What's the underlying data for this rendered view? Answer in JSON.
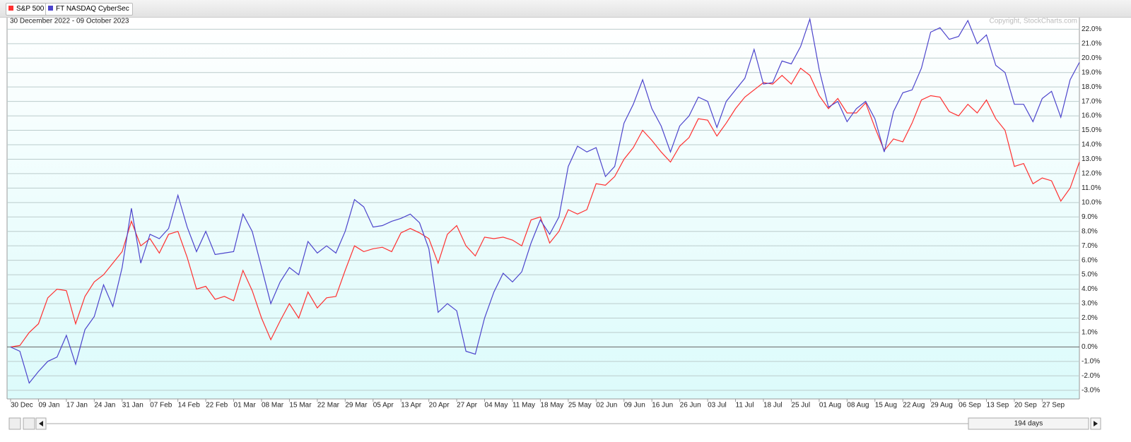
{
  "chart_data": {
    "type": "line",
    "subtitle": "30 December 2022 - 09 October 2023",
    "annotation": "Copyright, StockCharts.com",
    "categories": [
      "30 Dec",
      null,
      null,
      "09 Jan",
      null,
      null,
      "17 Jan",
      null,
      null,
      "24 Jan",
      null,
      null,
      "31 Jan",
      null,
      null,
      "07 Feb",
      null,
      null,
      "14 Feb",
      null,
      null,
      "22 Feb",
      null,
      null,
      "01 Mar",
      null,
      null,
      "08 Mar",
      null,
      null,
      "15 Mar",
      null,
      null,
      "22 Mar",
      null,
      null,
      "29 Mar",
      null,
      null,
      "05 Apr",
      null,
      null,
      "13 Apr",
      null,
      null,
      "20 Apr",
      null,
      null,
      "27 Apr",
      null,
      null,
      "04 May",
      null,
      null,
      "11 May",
      null,
      null,
      "18 May",
      null,
      null,
      "25 May",
      null,
      null,
      "02 Jun",
      null,
      null,
      "09 Jun",
      null,
      null,
      "16 Jun",
      null,
      null,
      "26 Jun",
      null,
      null,
      "03 Jul",
      null,
      null,
      "11 Jul",
      null,
      null,
      "18 Jul",
      null,
      null,
      "25 Jul",
      null,
      null,
      "01 Aug",
      null,
      null,
      "08 Aug",
      null,
      null,
      "15 Aug",
      null,
      null,
      "22 Aug",
      null,
      null,
      "29 Aug",
      null,
      null,
      "06 Sep",
      null,
      null,
      "13 Sep",
      null,
      null,
      "20 Sep",
      null,
      null,
      "27 Sep",
      null,
      null,
      null,
      null
    ],
    "series": [
      {
        "name": "S&P 500",
        "color": "#ff3030",
        "values": [
          0,
          0.1,
          1.0,
          1.6,
          3.4,
          4.0,
          3.9,
          1.6,
          3.5,
          4.5,
          5.0,
          5.8,
          6.6,
          8.7,
          7.0,
          7.5,
          6.5,
          7.8,
          8.0,
          6.2,
          4.0,
          4.2,
          3.3,
          3.5,
          3.2,
          5.3,
          3.9,
          2.0,
          0.5,
          1.8,
          3.0,
          2.0,
          3.8,
          2.7,
          3.4,
          3.5,
          5.3,
          7.0,
          6.6,
          6.8,
          6.9,
          6.6,
          7.9,
          8.2,
          7.9,
          7.5,
          5.8,
          7.8,
          8.4,
          7.0,
          6.3,
          7.6,
          7.5,
          7.6,
          7.4,
          7.0,
          8.8,
          9.0,
          7.2,
          8.0,
          9.5,
          9.2,
          9.5,
          11.3,
          11.2,
          11.8,
          13.0,
          13.8,
          15.0,
          14.3,
          13.5,
          12.8,
          13.9,
          14.5,
          15.8,
          15.7,
          14.6,
          15.5,
          16.5,
          17.3,
          17.8,
          18.3,
          18.2,
          18.8,
          18.2,
          19.3,
          18.8,
          17.4,
          16.5,
          17.2,
          16.2,
          16.2,
          16.9,
          15.2,
          13.6,
          14.4,
          14.2,
          15.5,
          17.1,
          17.4,
          17.3,
          16.3,
          16.0,
          16.8,
          16.2,
          17.1,
          15.8,
          15.0,
          12.5,
          12.7,
          11.3,
          11.7,
          11.5,
          10.1,
          11.0,
          12.8
        ]
      },
      {
        "name": "FT NASDAQ CyberSec",
        "color": "#4c44cc",
        "values": [
          0,
          -0.3,
          -2.5,
          -1.7,
          -1.0,
          -0.7,
          0.8,
          -1.2,
          1.2,
          2.1,
          4.3,
          2.8,
          5.5,
          9.6,
          5.8,
          7.8,
          7.5,
          8.2,
          10.5,
          8.3,
          6.6,
          8.0,
          6.4,
          6.5,
          6.6,
          9.2,
          8.0,
          5.5,
          3.0,
          4.5,
          5.5,
          5.0,
          7.3,
          6.5,
          7.0,
          6.5,
          8.0,
          10.2,
          9.7,
          8.3,
          8.4,
          8.7,
          8.9,
          9.2,
          8.6,
          6.8,
          2.4,
          3.0,
          2.5,
          -0.3,
          -0.5,
          2.0,
          3.8,
          5.1,
          4.5,
          5.2,
          7.2,
          8.8,
          7.8,
          9.0,
          12.5,
          13.9,
          13.5,
          13.8,
          11.8,
          12.5,
          15.5,
          16.8,
          18.5,
          16.5,
          15.3,
          13.5,
          15.3,
          16.0,
          17.3,
          17.0,
          15.2,
          17.0,
          17.8,
          18.6,
          20.6,
          18.2,
          18.3,
          19.8,
          19.6,
          20.8,
          22.7,
          19.2,
          16.6,
          17.0,
          15.6,
          16.5,
          17.0,
          15.8,
          13.5,
          16.3,
          17.6,
          17.8,
          19.3,
          21.8,
          22.1,
          21.3,
          21.5,
          22.6,
          21.0,
          21.6,
          19.5,
          19.0,
          16.8,
          16.8,
          15.6,
          17.2,
          17.7,
          15.9,
          18.5,
          19.7
        ]
      }
    ],
    "ylim": [
      -3.6,
      22.8
    ],
    "yticks": [
      {
        "value": -3,
        "label": "-3.0%"
      },
      {
        "value": -2,
        "label": "-2.0%"
      },
      {
        "value": -1,
        "label": "-1.0%"
      },
      {
        "value": 0,
        "label": "0.0%"
      },
      {
        "value": 1,
        "label": "1.0%"
      },
      {
        "value": 2,
        "label": "2.0%"
      },
      {
        "value": 3,
        "label": "3.0%"
      },
      {
        "value": 4,
        "label": "4.0%"
      },
      {
        "value": 5,
        "label": "5.0%"
      },
      {
        "value": 6,
        "label": "6.0%"
      },
      {
        "value": 7,
        "label": "7.0%"
      },
      {
        "value": 8,
        "label": "8.0%"
      },
      {
        "value": 9,
        "label": "9.0%"
      },
      {
        "value": 10,
        "label": "10.0%"
      },
      {
        "value": 11,
        "label": "11.0%"
      },
      {
        "value": 12,
        "label": "12.0%"
      },
      {
        "value": 13,
        "label": "13.0%"
      },
      {
        "value": 14,
        "label": "14.0%"
      },
      {
        "value": 15,
        "label": "15.0%"
      },
      {
        "value": 16,
        "label": "16.0%"
      },
      {
        "value": 17,
        "label": "17.0%"
      },
      {
        "value": 18,
        "label": "18.0%"
      },
      {
        "value": 19,
        "label": "19.0%"
      },
      {
        "value": 20,
        "label": "20.0%"
      },
      {
        "value": 21,
        "label": "21.0%"
      },
      {
        "value": 22,
        "label": "22.0%"
      }
    ],
    "grid": true
  },
  "ui": {
    "range_label": "194 days"
  }
}
